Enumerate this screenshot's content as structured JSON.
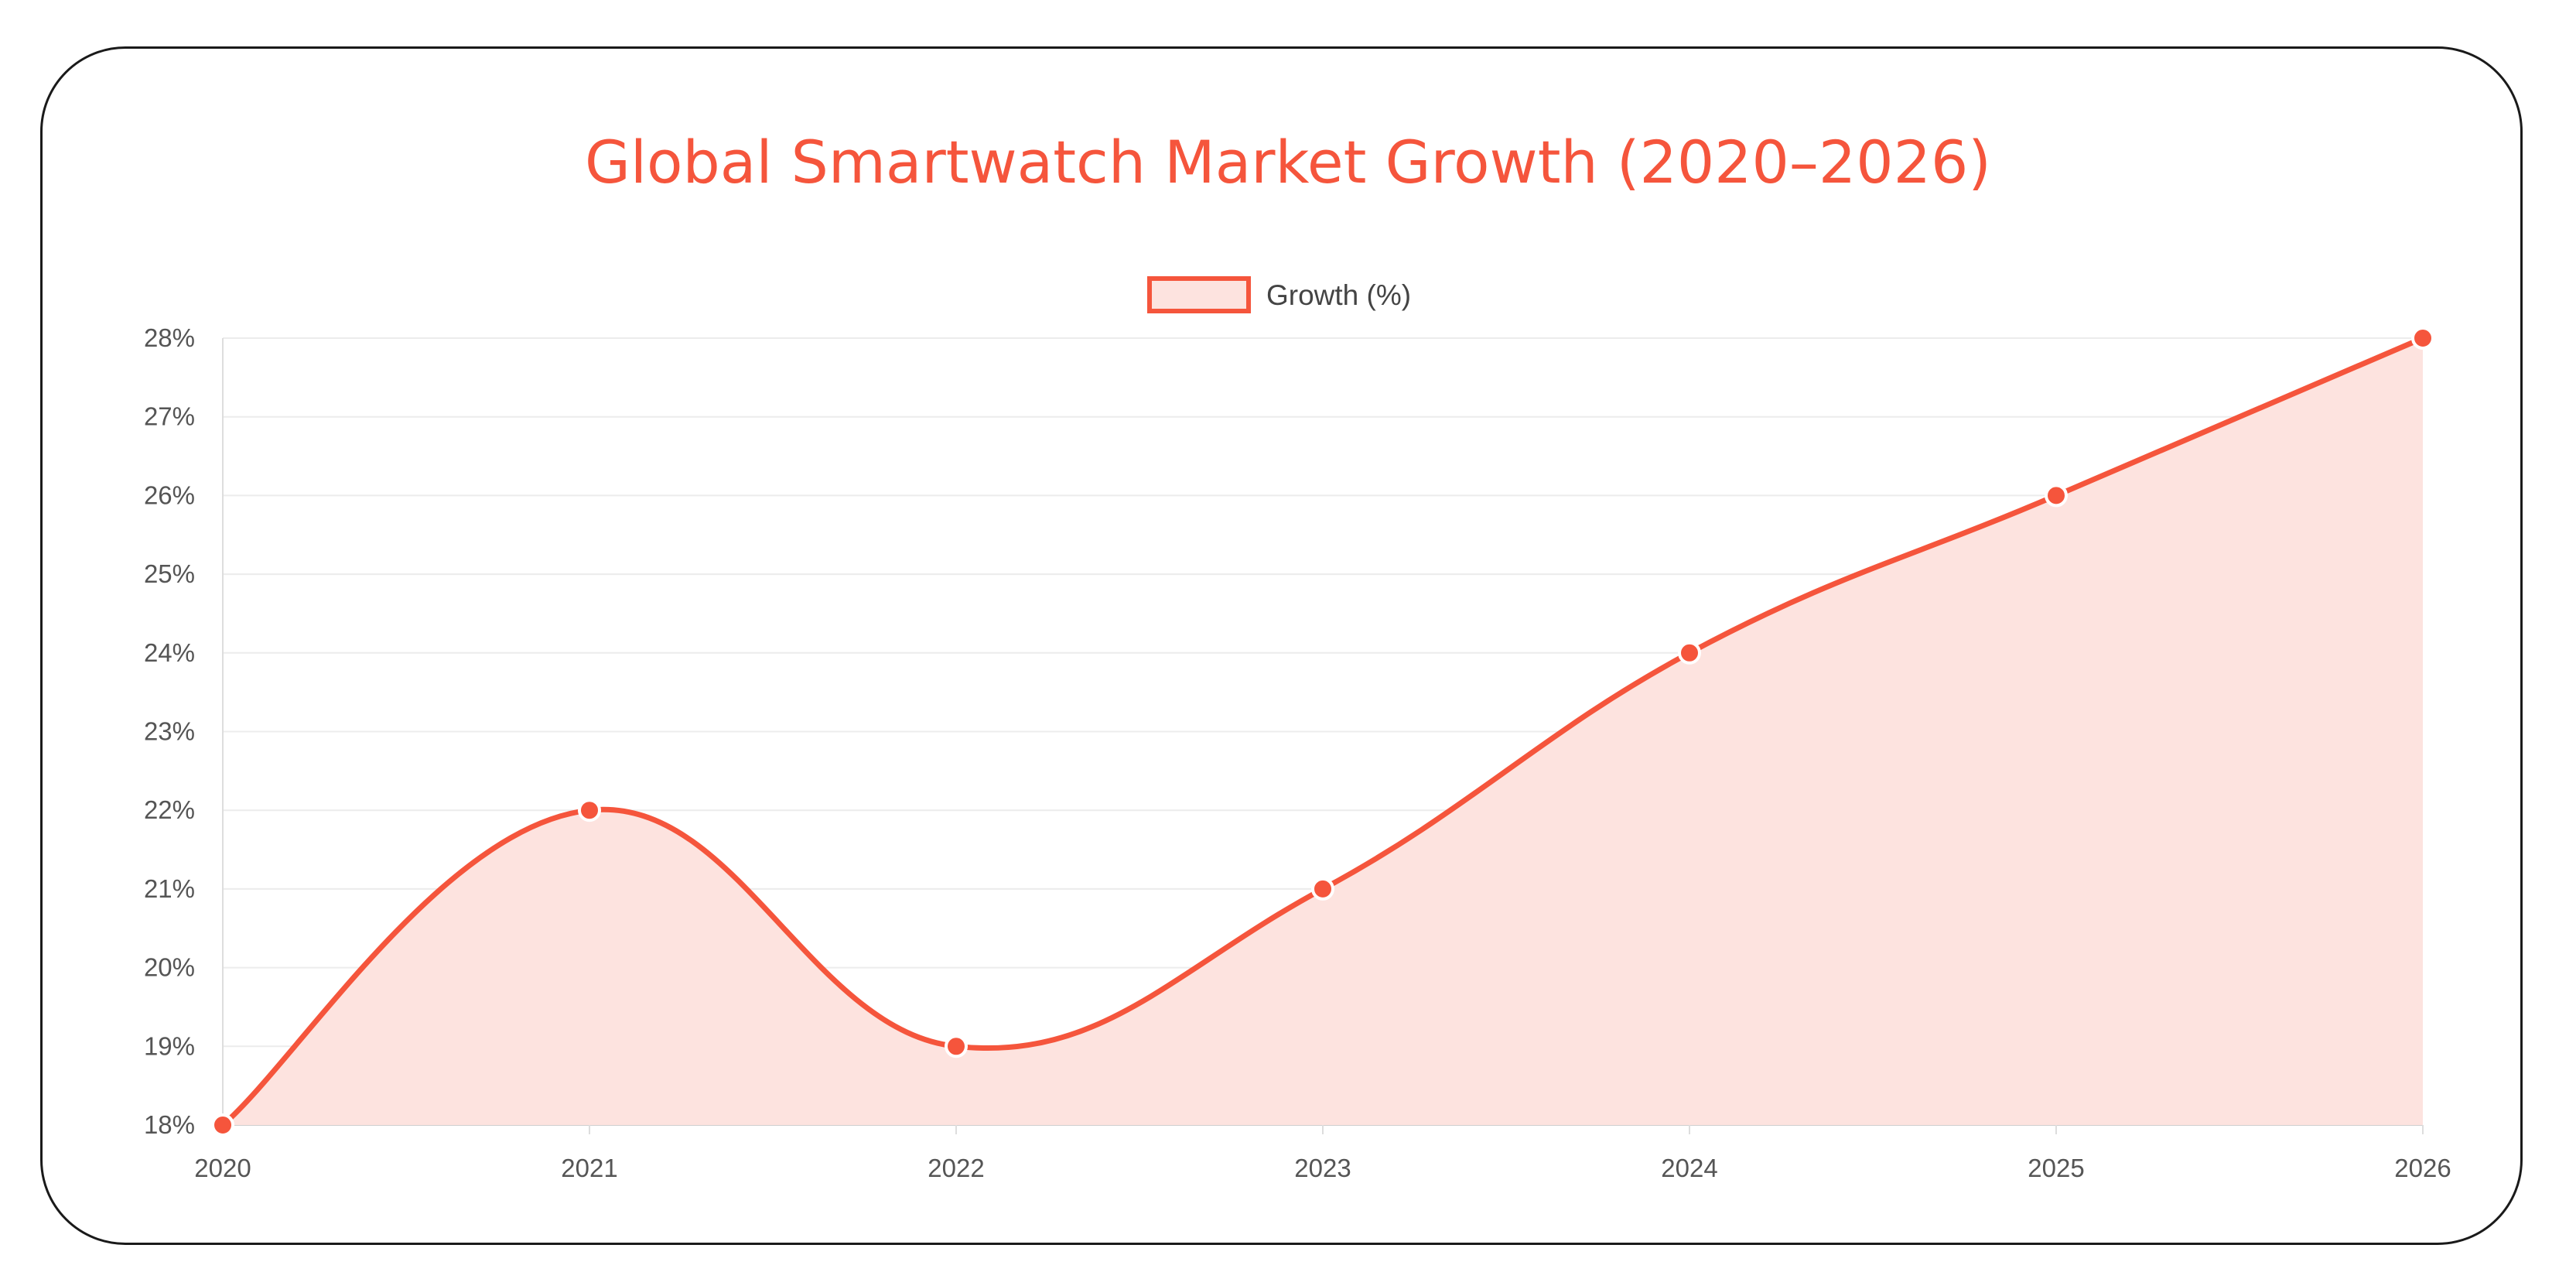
{
  "colors": {
    "accent": "#f5553c",
    "fill": "#fde3df",
    "grid": "#ececec",
    "text": "#555555"
  },
  "chart_data": {
    "type": "area",
    "title": "Global Smartwatch Market Growth (2020–2026)",
    "legend_position": "top-center",
    "grid": true,
    "categories": [
      "2020",
      "2021",
      "2022",
      "2023",
      "2024",
      "2025",
      "2026"
    ],
    "series": [
      {
        "name": "Growth (%)",
        "values": [
          18,
          22,
          19,
          21,
          24,
          26,
          28
        ]
      }
    ],
    "ylim": [
      18,
      28
    ],
    "y_ticks": [
      18,
      19,
      20,
      21,
      22,
      23,
      24,
      25,
      26,
      27,
      28
    ],
    "y_tick_suffix": "%",
    "xlabel": "",
    "ylabel": ""
  }
}
